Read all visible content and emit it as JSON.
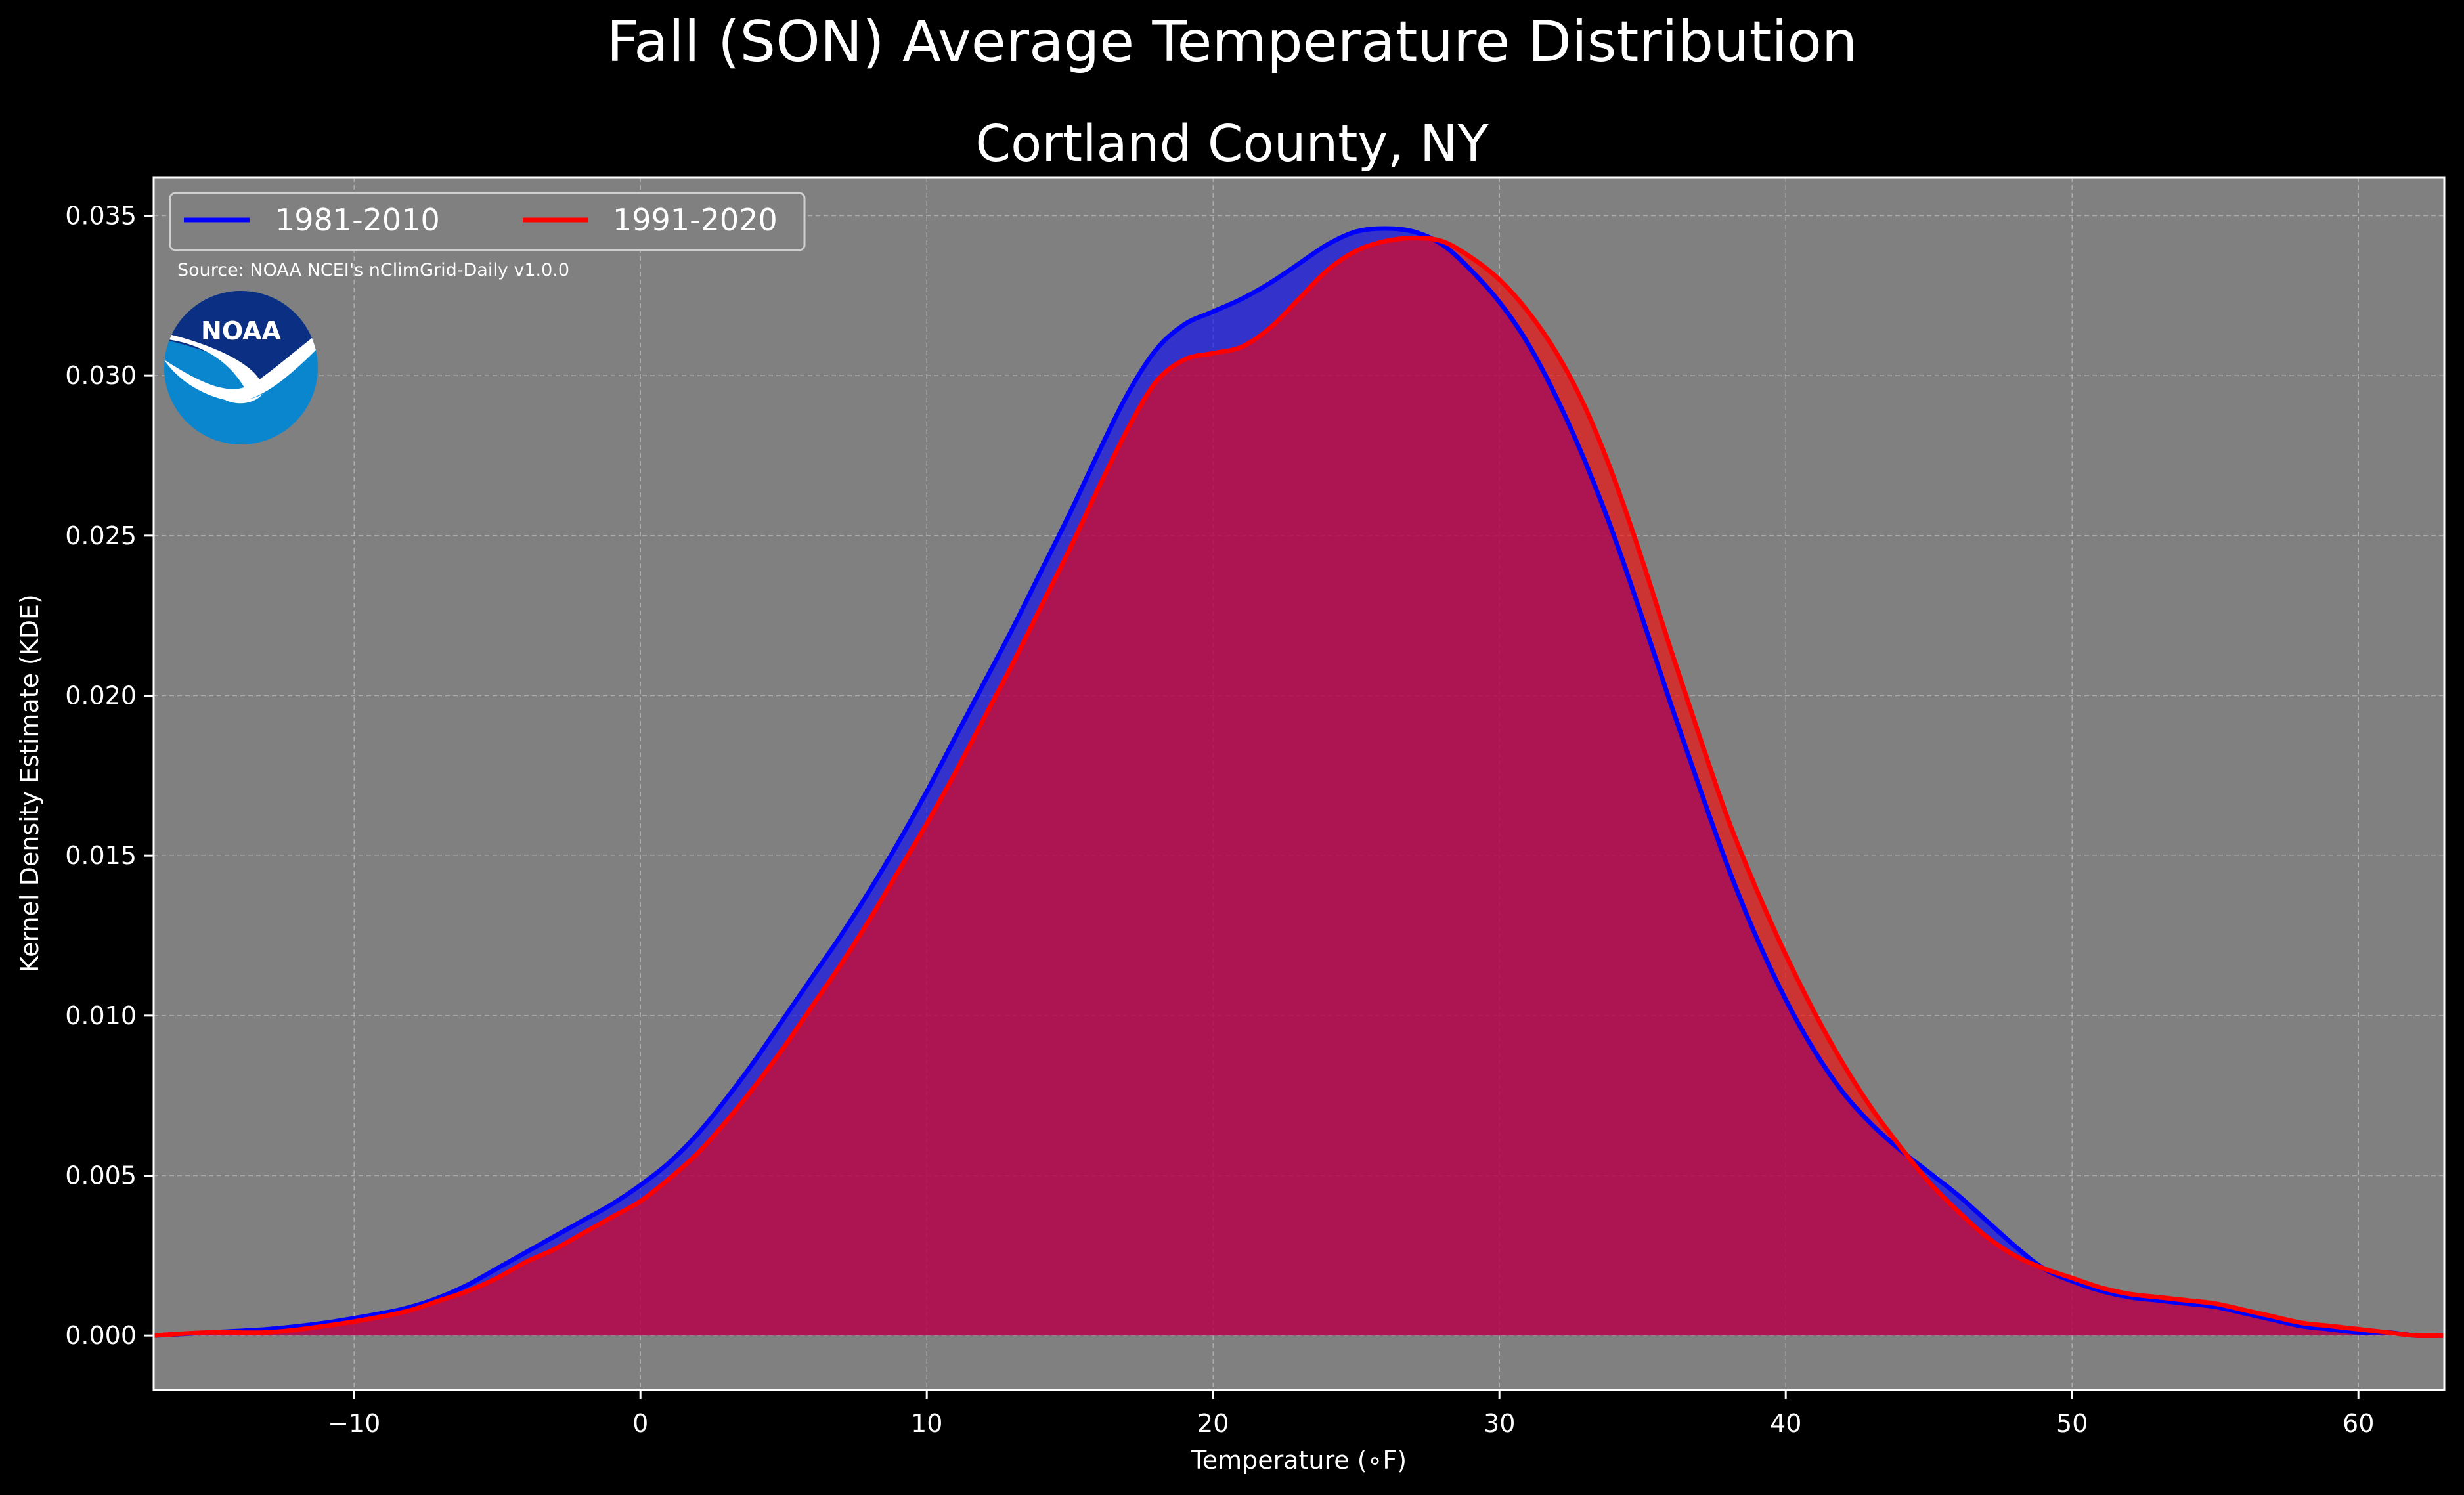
{
  "title": "Fall (SON) Average Temperature Distribution",
  "subtitle": "Cortland County, NY",
  "source_note": "Source: NOAA NCEI's nClimGrid-Daily v1.0.0",
  "logo_text": "NOAA",
  "colors": {
    "figure_bg": "#000000",
    "plot_bg": "#808080",
    "grid": "#b8b8b8",
    "series_1981": "#0000ff",
    "series_1991": "#ff0000",
    "logo_dark": "#0b2f82",
    "logo_light": "#0a86cf"
  },
  "chart_data": {
    "type": "area",
    "title": "Fall (SON) Average Temperature Distribution",
    "subtitle": "Cortland County, NY",
    "xlabel": "Temperature ($^\\circ$F)",
    "xlabel_display": "Temperature (∘F)",
    "ylabel": "Kernel Density Estimate (KDE)",
    "xlim": [
      -17,
      63
    ],
    "ylim": [
      -0.0017,
      0.0362
    ],
    "xticks": [
      -10,
      0,
      10,
      20,
      30,
      40,
      50,
      60
    ],
    "xtick_labels": [
      "−10",
      "0",
      "10",
      "20",
      "30",
      "40",
      "50",
      "60"
    ],
    "yticks": [
      0.0,
      0.005,
      0.01,
      0.015,
      0.02,
      0.025,
      0.03,
      0.035
    ],
    "ytick_labels": [
      "0.000",
      "0.005",
      "0.010",
      "0.015",
      "0.020",
      "0.025",
      "0.030",
      "0.035"
    ],
    "grid": true,
    "legend": {
      "placement": "top-left",
      "columns": 2
    },
    "series": [
      {
        "name": "1981-2010",
        "color": "#0000ff",
        "x": [
          -17,
          -15,
          -13,
          -11,
          -9,
          -8,
          -7,
          -6,
          -5,
          -4,
          -3,
          -2,
          -1,
          0,
          1,
          2,
          3,
          4,
          5,
          6,
          7,
          8,
          9,
          10,
          11,
          12,
          13,
          14,
          15,
          16,
          17,
          18,
          19,
          20,
          21,
          22,
          23,
          24,
          25,
          26,
          27,
          28,
          29,
          30,
          31,
          32,
          33,
          34,
          35,
          36,
          37,
          38,
          39,
          40,
          41,
          42,
          43,
          44,
          45,
          46,
          47,
          48,
          49,
          50,
          51,
          52,
          53,
          54,
          55,
          56,
          57,
          58,
          59,
          60,
          61,
          62,
          63
        ],
        "y": [
          0.0,
          0.0001,
          0.0002,
          0.0004,
          0.0007,
          0.0009,
          0.0012,
          0.0016,
          0.0021,
          0.0026,
          0.0031,
          0.0036,
          0.0041,
          0.0047,
          0.0054,
          0.0063,
          0.0074,
          0.0086,
          0.0099,
          0.0112,
          0.0125,
          0.0139,
          0.0154,
          0.017,
          0.0187,
          0.0204,
          0.0221,
          0.0239,
          0.0257,
          0.0276,
          0.0294,
          0.0308,
          0.0316,
          0.032,
          0.0324,
          0.0329,
          0.0335,
          0.0341,
          0.0345,
          0.0346,
          0.0345,
          0.0341,
          0.0333,
          0.0323,
          0.031,
          0.0293,
          0.0273,
          0.025,
          0.0224,
          0.0197,
          0.0171,
          0.0146,
          0.0124,
          0.0105,
          0.0089,
          0.0076,
          0.0066,
          0.0058,
          0.0051,
          0.0044,
          0.0036,
          0.0028,
          0.0021,
          0.0017,
          0.0014,
          0.0012,
          0.0011,
          0.001,
          0.0009,
          0.0007,
          0.0005,
          0.0003,
          0.0002,
          0.0001,
          0.0001,
          0.0,
          0.0
        ]
      },
      {
        "name": "1991-2020",
        "color": "#ff0000",
        "x": [
          -17,
          -15,
          -13,
          -11,
          -9,
          -8,
          -7,
          -6,
          -5,
          -4,
          -3,
          -2,
          -1,
          0,
          1,
          2,
          3,
          4,
          5,
          6,
          7,
          8,
          9,
          10,
          11,
          12,
          13,
          14,
          15,
          16,
          17,
          18,
          19,
          20,
          21,
          22,
          23,
          24,
          25,
          26,
          27,
          28,
          29,
          30,
          31,
          32,
          33,
          34,
          35,
          36,
          37,
          38,
          39,
          40,
          41,
          42,
          43,
          44,
          45,
          46,
          47,
          48,
          49,
          50,
          51,
          52,
          53,
          54,
          55,
          56,
          57,
          58,
          59,
          60,
          61,
          62,
          63
        ],
        "y": [
          0.0,
          0.0001,
          0.0001,
          0.0003,
          0.0006,
          0.0008,
          0.0011,
          0.0014,
          0.0018,
          0.0023,
          0.0027,
          0.0032,
          0.0037,
          0.0042,
          0.0049,
          0.0057,
          0.0067,
          0.0078,
          0.009,
          0.0103,
          0.0116,
          0.013,
          0.0145,
          0.016,
          0.0176,
          0.0193,
          0.021,
          0.0228,
          0.0246,
          0.0265,
          0.0283,
          0.0298,
          0.0305,
          0.0307,
          0.0309,
          0.0315,
          0.0324,
          0.0333,
          0.0339,
          0.0342,
          0.0343,
          0.0342,
          0.0337,
          0.033,
          0.032,
          0.0307,
          0.029,
          0.0268,
          0.0242,
          0.0214,
          0.0187,
          0.0161,
          0.0139,
          0.0119,
          0.0101,
          0.0085,
          0.0071,
          0.0059,
          0.0048,
          0.0039,
          0.0031,
          0.0025,
          0.0021,
          0.0018,
          0.0015,
          0.0013,
          0.0012,
          0.0011,
          0.001,
          0.0008,
          0.0006,
          0.0004,
          0.0003,
          0.0002,
          0.0001,
          0.0,
          0.0
        ]
      }
    ]
  }
}
